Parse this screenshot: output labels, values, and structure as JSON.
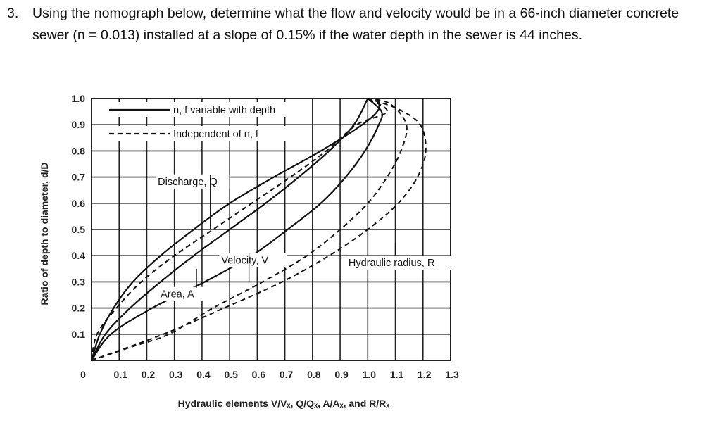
{
  "question": {
    "number": "3.",
    "text": "Using the nomograph below, determine what the flow and velocity would be in a 66-inch diameter concrete sewer (n = 0.013) installed at a slope of 0.15% if the water depth in the sewer is 44 inches."
  },
  "chart_data": {
    "type": "line",
    "title": "",
    "xlabel": "Hydraulic elements V/Vₓ, Q/Qₓ, A/Aₓ, and R/Rₓ",
    "ylabel": "Ratio of depth to diameter, d/D",
    "xlim": [
      0,
      1.3
    ],
    "ylim": [
      0,
      1.0
    ],
    "grid": true,
    "x_tick_labels": [
      "0",
      "0.1",
      "0.2",
      "0.3",
      "0.4",
      "0.5",
      "0.6",
      "0.7",
      "0.8",
      "0.9",
      "1.0",
      "1.1",
      "1.2",
      "1.3"
    ],
    "y_tick_labels": [
      "0.1",
      "0.2",
      "0.3",
      "0.4",
      "0.5",
      "0.6",
      "0.7",
      "0.8",
      "0.9",
      "1.0"
    ],
    "legend": [
      {
        "label": "n, f variable with depth",
        "style": "solid"
      },
      {
        "label": "Independent of n, f",
        "style": "dashed"
      }
    ],
    "legend_position": "top-left",
    "annotations": [
      {
        "text": "Discharge, Q",
        "x": 0.24,
        "y": 0.67,
        "points_to": [
          0.43,
          0.5
        ]
      },
      {
        "text": "Velocity, V",
        "x": 0.47,
        "y": 0.37,
        "points_to": [
          0.57,
          0.3
        ]
      },
      {
        "text": "Area, A",
        "x": 0.25,
        "y": 0.24,
        "points_to": [
          0.38,
          0.35
        ]
      },
      {
        "text": "Hydraulic radius, R",
        "x": 0.93,
        "y": 0.36,
        "points_to": [
          1.1,
          0.45
        ]
      }
    ],
    "series": [
      {
        "name": "Discharge, Q",
        "style": "solid",
        "points": [
          [
            0,
            0
          ],
          [
            0.03,
            0.1
          ],
          [
            0.08,
            0.2
          ],
          [
            0.15,
            0.3
          ],
          [
            0.25,
            0.4
          ],
          [
            0.37,
            0.5
          ],
          [
            0.5,
            0.6
          ],
          [
            0.66,
            0.7
          ],
          [
            0.83,
            0.8
          ],
          [
            0.98,
            0.9
          ],
          [
            1.04,
            0.96
          ],
          [
            1.03,
            1.0
          ]
        ]
      },
      {
        "name": "Discharge, Q",
        "style": "dashed",
        "points": [
          [
            0,
            0
          ],
          [
            0.02,
            0.1
          ],
          [
            0.09,
            0.2
          ],
          [
            0.18,
            0.3
          ],
          [
            0.3,
            0.4
          ],
          [
            0.44,
            0.5
          ],
          [
            0.58,
            0.6
          ],
          [
            0.72,
            0.7
          ],
          [
            0.85,
            0.8
          ],
          [
            0.96,
            0.9
          ],
          [
            1.07,
            0.95
          ],
          [
            1.0,
            1.0
          ]
        ]
      },
      {
        "name": "Velocity, V",
        "style": "solid",
        "points": [
          [
            0,
            0
          ],
          [
            0.07,
            0.1
          ],
          [
            0.22,
            0.2
          ],
          [
            0.41,
            0.3
          ],
          [
            0.58,
            0.4
          ],
          [
            0.71,
            0.5
          ],
          [
            0.83,
            0.6
          ],
          [
            0.92,
            0.7
          ],
          [
            0.99,
            0.8
          ],
          [
            1.04,
            0.9
          ],
          [
            1.05,
            0.95
          ],
          [
            1.0,
            1.0
          ]
        ]
      },
      {
        "name": "Velocity, V",
        "style": "dashed",
        "points": [
          [
            0,
            0
          ],
          [
            0.14,
            0.05
          ],
          [
            0.28,
            0.1
          ],
          [
            0.44,
            0.2
          ],
          [
            0.62,
            0.3
          ],
          [
            0.78,
            0.4
          ],
          [
            0.9,
            0.5
          ],
          [
            1.0,
            0.6
          ],
          [
            1.07,
            0.7
          ],
          [
            1.12,
            0.8
          ],
          [
            1.14,
            0.9
          ],
          [
            1.08,
            0.98
          ],
          [
            1.0,
            1.0
          ]
        ]
      },
      {
        "name": "Area, A",
        "style": "solid",
        "points": [
          [
            0,
            0
          ],
          [
            0.05,
            0.1
          ],
          [
            0.14,
            0.2
          ],
          [
            0.25,
            0.3
          ],
          [
            0.37,
            0.4
          ],
          [
            0.5,
            0.5
          ],
          [
            0.63,
            0.6
          ],
          [
            0.75,
            0.7
          ],
          [
            0.86,
            0.8
          ],
          [
            0.95,
            0.9
          ],
          [
            1.0,
            1.0
          ]
        ]
      },
      {
        "name": "Hydraulic radius, R",
        "style": "dashed",
        "points": [
          [
            0,
            0
          ],
          [
            0.26,
            0.1
          ],
          [
            0.48,
            0.2
          ],
          [
            0.69,
            0.3
          ],
          [
            0.86,
            0.4
          ],
          [
            1.0,
            0.5
          ],
          [
            1.11,
            0.6
          ],
          [
            1.18,
            0.7
          ],
          [
            1.21,
            0.8
          ],
          [
            1.19,
            0.9
          ],
          [
            1.11,
            0.96
          ],
          [
            1.0,
            1.0
          ]
        ]
      }
    ]
  }
}
